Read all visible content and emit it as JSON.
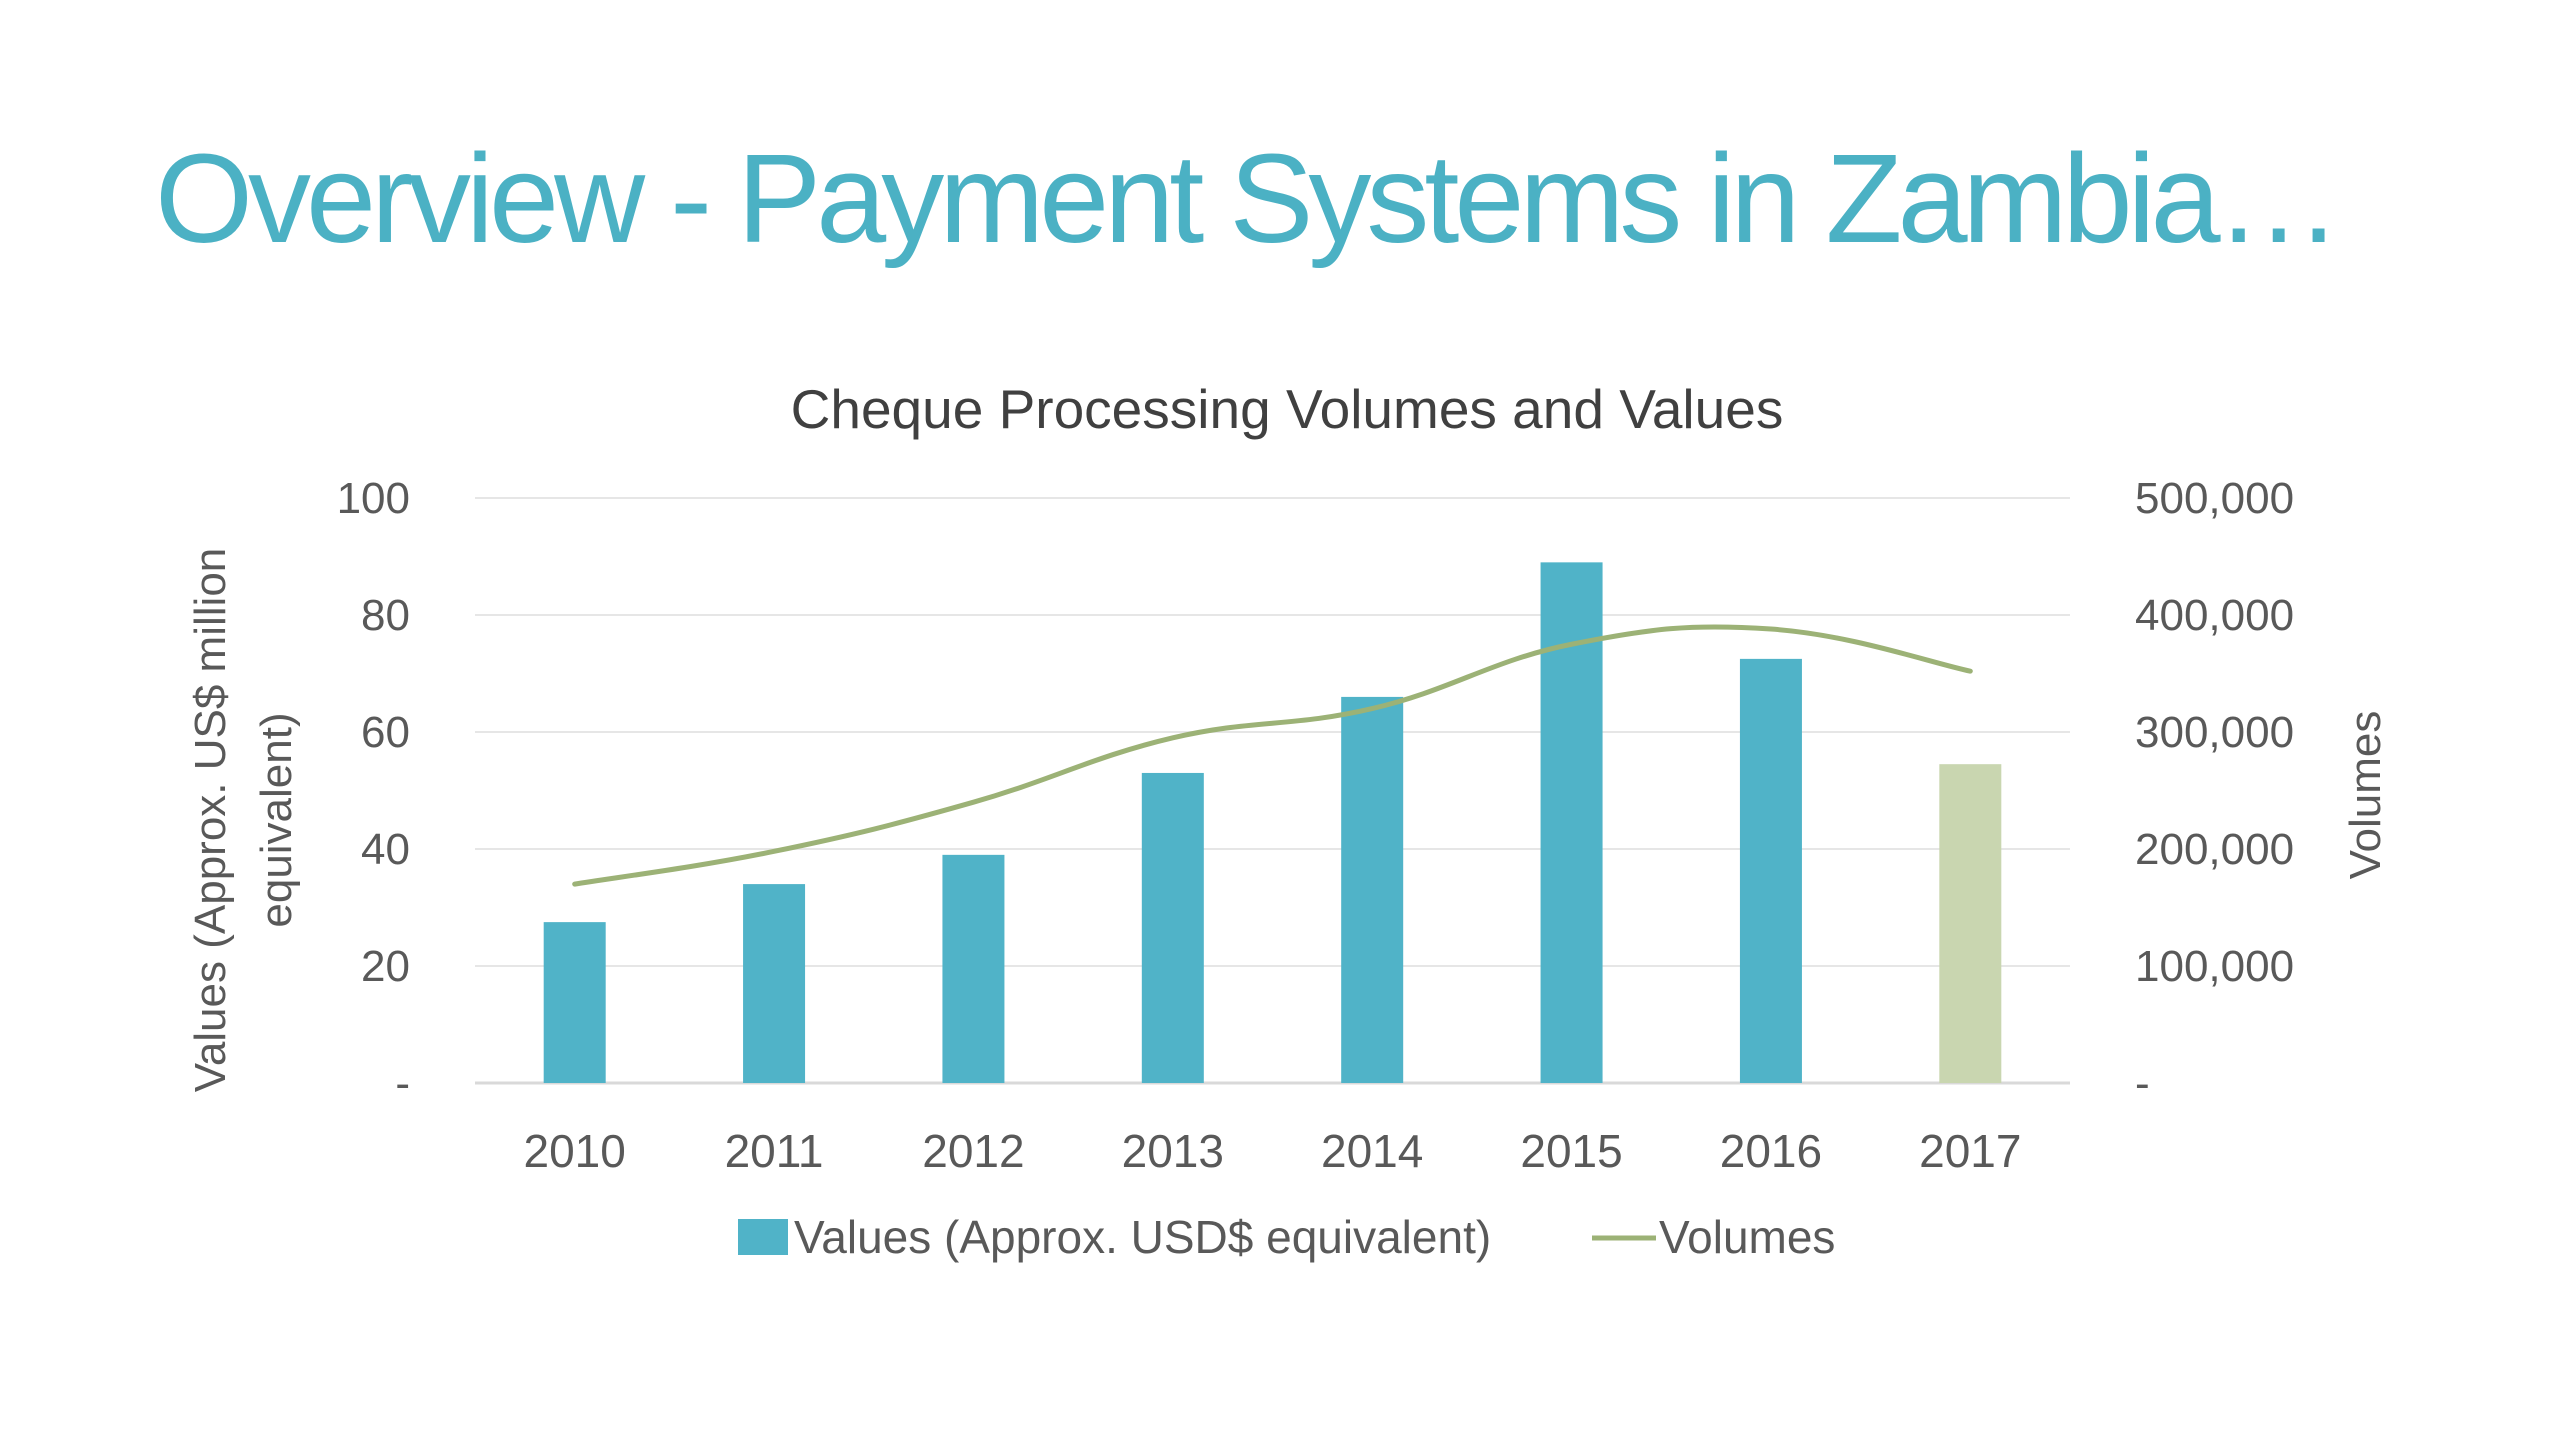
{
  "slide": {
    "title": "Overview - Payment Systems in Zambia…",
    "title_color": "#4bb1c4"
  },
  "chart_data": {
    "type": "bar",
    "title": "Cheque Processing Volumes and Values",
    "categories": [
      "2010",
      "2011",
      "2012",
      "2013",
      "2014",
      "2015",
      "2016",
      "2017"
    ],
    "series": [
      {
        "name": "Values (Approx. USD$ equivalent)",
        "type": "bar",
        "axis": "left",
        "color": "#50b3c8",
        "highlight": {
          "category": "2017",
          "color": "#c9d6b0"
        },
        "values": [
          27.5,
          34,
          39,
          53,
          66,
          89,
          72.5,
          54.5
        ]
      },
      {
        "name": "Volumes",
        "type": "line",
        "axis": "right",
        "color": "#9cb276",
        "values": [
          170000,
          198000,
          240000,
          295000,
          320000,
          375000,
          388000,
          352000
        ]
      }
    ],
    "ylabel": "Values (Approx. US$ million equivalent)",
    "y2label": "Volumes",
    "ylim": [
      0,
      100
    ],
    "y2lim": [
      0,
      500000
    ],
    "yticks": [
      "-",
      "20",
      "40",
      "60",
      "80",
      "100"
    ],
    "y2ticks": [
      "-",
      "100,000",
      "200,000",
      "300,000",
      "400,000",
      "500,000"
    ],
    "grid": true,
    "legend_position": "bottom"
  }
}
